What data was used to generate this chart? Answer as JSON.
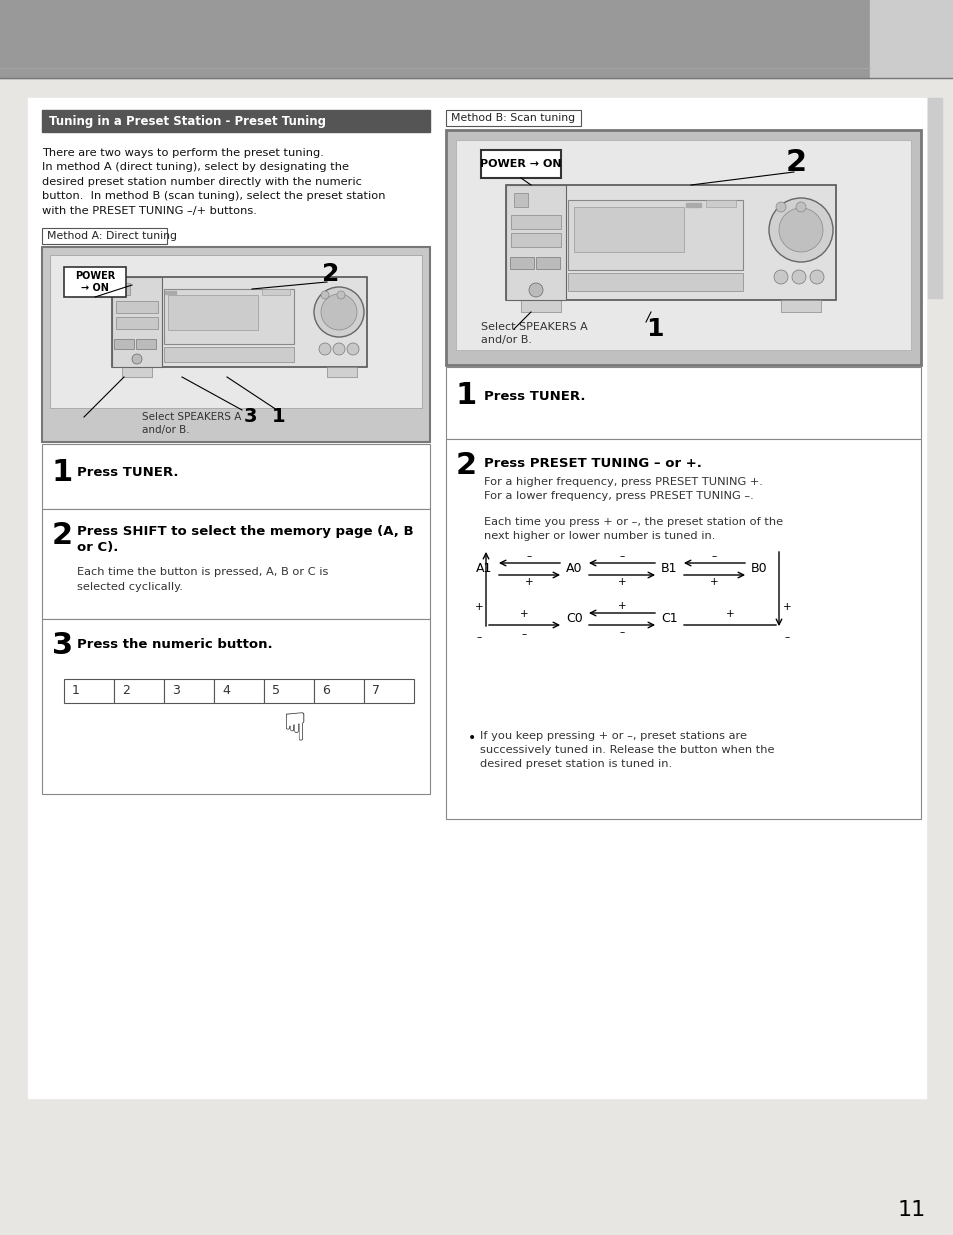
{
  "page_bg": "#e8e6e3",
  "header_bg": "#999999",
  "body_bg": "#ffffff",
  "title_text": "Tuning in a Preset Station - Preset Tuning",
  "intro_text": "There are two ways to perform the preset tuning.\nIn method A (direct tuning), select by designating the\ndesired preset station number directly with the numeric\nbutton.  In method B (scan tuning), select the preset station\nwith the PRESET TUNING –/+ buttons.",
  "method_a_label": "Method A: Direct tuning",
  "method_b_label": "Method B: Scan tuning",
  "step1_bold": "Press TUNER.",
  "step2a_line1": "Press SHIFT to select the memory page (A, B",
  "step2a_line2": "or C).",
  "step2a_sub1": "Each time the button is pressed, A, B or C is",
  "step2a_sub2": "selected cyclically.",
  "step3_bold": "Press the numeric button.",
  "step1b_bold": "Press TUNER.",
  "step2b_bold": "Press PRESET TUNING – or +.",
  "step2b_sub1": "For a higher frequency, press PRESET TUNING +.",
  "step2b_sub2": "For a lower frequency, press PRESET TUNING –.",
  "step2b_sub3": "Each time you press + or –, the preset station of the",
  "step2b_sub4": "next higher or lower number is tuned in.",
  "bullet_1": "If you keep pressing + or –, preset stations are",
  "bullet_2": "successively tuned in. Release the button when the",
  "bullet_3": "desired preset station is tuned in.",
  "page_number": "11",
  "select_speakers": "Select SPEAKERS A",
  "select_speakers2": "and/or B."
}
